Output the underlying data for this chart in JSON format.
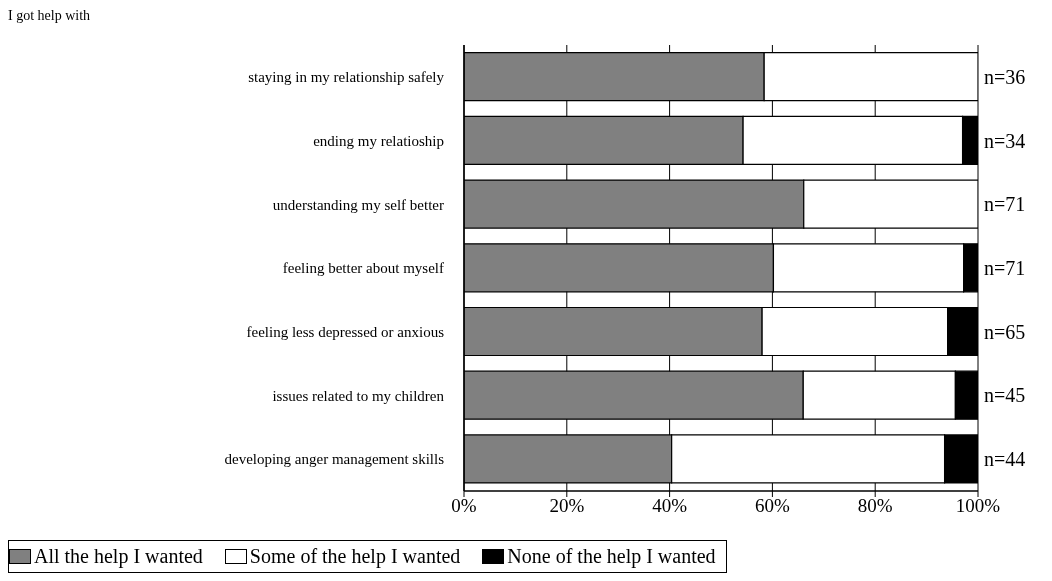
{
  "chart_data": {
    "type": "bar",
    "orientation": "horizontal",
    "stacked": true,
    "categories": [
      "staying in my relationship safely",
      "ending my relatioship",
      "understanding my self better",
      "feeling better about myself",
      "feeling less depressed or anxious",
      "issues related to my children",
      "developing anger management skills"
    ],
    "series": [
      {
        "name": "All the help I wanted",
        "color": "#808080",
        "values": [
          58.4,
          54.3,
          66.1,
          60.2,
          58.0,
          66.0,
          40.4
        ]
      },
      {
        "name": "Some of the help I wanted",
        "color": "#ffffff",
        "values": [
          41.6,
          42.7,
          33.9,
          37.0,
          36.1,
          29.6,
          53.1
        ]
      },
      {
        "name": "None of the help I wanted",
        "color": "#000000",
        "values": [
          0,
          3.0,
          0,
          2.8,
          5.9,
          4.4,
          6.5
        ]
      }
    ],
    "xlim": [
      0,
      100
    ],
    "xticks": [
      {
        "value": 0,
        "label": "0%"
      },
      {
        "value": 20,
        "label": "20%"
      },
      {
        "value": 40,
        "label": "40%"
      },
      {
        "value": 60,
        "label": "60%"
      },
      {
        "value": 80,
        "label": "80%"
      },
      {
        "value": 100,
        "label": "100%"
      }
    ],
    "grid": "x",
    "legend": "bottom",
    "annotations": [
      "I got help with",
      "n=36",
      "n=34",
      "n=71",
      "n=71",
      "n=65",
      "n=45",
      "n=44"
    ]
  }
}
